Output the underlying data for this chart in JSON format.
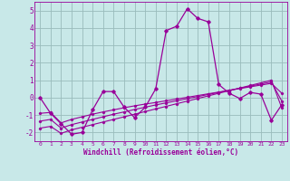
{
  "x": [
    0,
    1,
    2,
    3,
    4,
    5,
    6,
    7,
    8,
    9,
    10,
    11,
    12,
    13,
    14,
    15,
    16,
    17,
    18,
    19,
    20,
    21,
    22,
    23
  ],
  "main_y": [
    0.0,
    -0.9,
    -1.5,
    -2.1,
    -2.0,
    -0.7,
    0.35,
    0.35,
    -0.55,
    -1.15,
    -0.55,
    0.5,
    3.85,
    4.1,
    5.1,
    4.55,
    4.35,
    0.75,
    0.25,
    -0.05,
    0.3,
    0.2,
    -1.3,
    -0.4
  ],
  "line1_y": [
    -0.9,
    -0.85,
    -1.45,
    -1.25,
    -1.1,
    -0.95,
    -0.82,
    -0.7,
    -0.58,
    -0.47,
    -0.37,
    -0.28,
    -0.18,
    -0.08,
    0.02,
    0.12,
    0.22,
    0.32,
    0.42,
    0.52,
    0.62,
    0.72,
    0.82,
    0.25
  ],
  "line2_y": [
    -1.35,
    -1.25,
    -1.75,
    -1.55,
    -1.4,
    -1.25,
    -1.1,
    -0.95,
    -0.82,
    -0.68,
    -0.55,
    -0.42,
    -0.3,
    -0.18,
    -0.06,
    0.06,
    0.18,
    0.3,
    0.42,
    0.54,
    0.66,
    0.78,
    0.9,
    -0.2
  ],
  "line3_y": [
    -1.75,
    -1.65,
    -2.05,
    -1.85,
    -1.7,
    -1.55,
    -1.4,
    -1.25,
    -1.1,
    -0.95,
    -0.8,
    -0.65,
    -0.5,
    -0.35,
    -0.2,
    -0.05,
    0.1,
    0.25,
    0.4,
    0.55,
    0.7,
    0.85,
    1.0,
    -0.6
  ],
  "bg_color": "#c8e8e8",
  "line_color": "#990099",
  "grid_color": "#99bbbb",
  "xlabel": "Windchill (Refroidissement éolien,°C)",
  "ylim": [
    -2.5,
    5.5
  ],
  "xlim": [
    -0.5,
    23.5
  ],
  "yticks": [
    -2,
    -1,
    0,
    1,
    2,
    3,
    4,
    5
  ],
  "xticks": [
    0,
    1,
    2,
    3,
    4,
    5,
    6,
    7,
    8,
    9,
    10,
    11,
    12,
    13,
    14,
    15,
    16,
    17,
    18,
    19,
    20,
    21,
    22,
    23
  ]
}
